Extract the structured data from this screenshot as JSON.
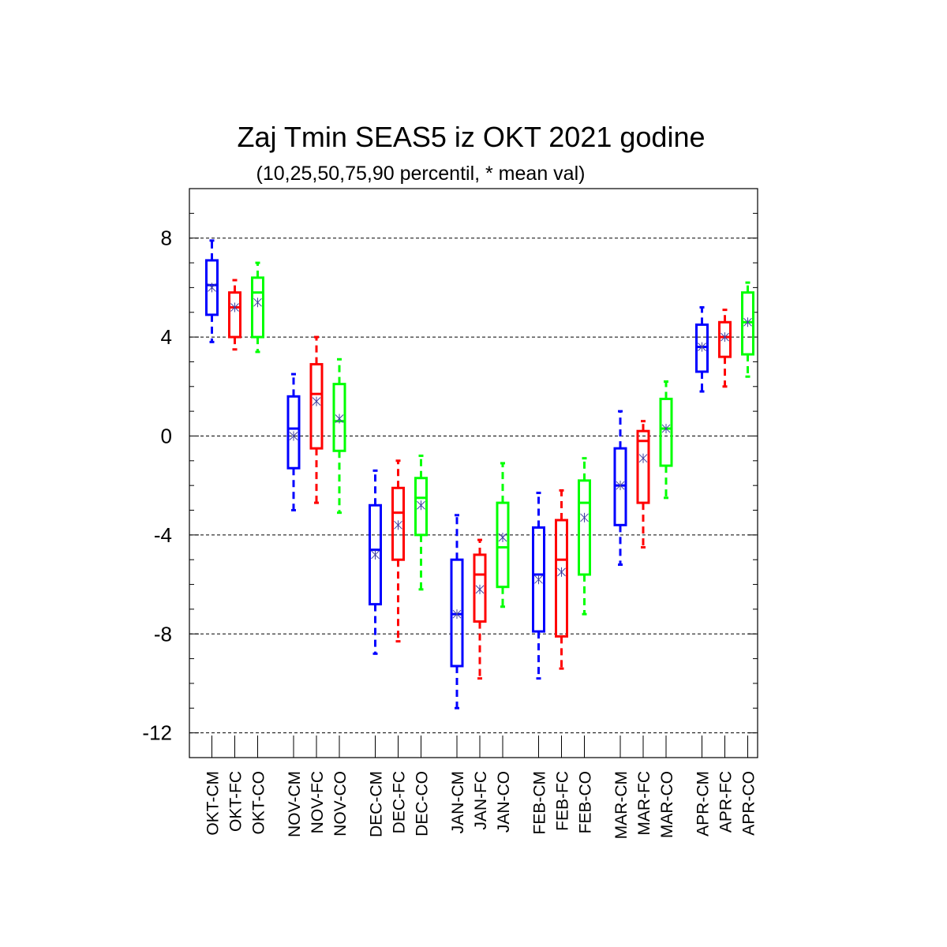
{
  "chart_data": {
    "type": "boxplot",
    "title": "Zaj Tmin SEAS5 iz OKT 2021 godine",
    "subtitle": "(10,25,50,75,90 percentil, * mean val)",
    "ylim": [
      -13,
      10
    ],
    "yticks": [
      8,
      4,
      0,
      -4,
      -8,
      -12
    ],
    "ytick_labels": [
      "8",
      "4",
      "0",
      "-4",
      "-8",
      "-12"
    ],
    "grid": "dashed horizontal at major ticks",
    "colors": {
      "CM": "#0000ff",
      "FC": "#ff0000",
      "CO": "#00ff00",
      "mean_marker": "#4040a0"
    },
    "groups": [
      {
        "month": "OKT",
        "boxes": [
          {
            "label": "OKT-CM",
            "type": "CM",
            "p10": 3.8,
            "p25": 4.9,
            "p50": 6.1,
            "p75": 7.1,
            "p90": 7.9,
            "mean": 6.0
          },
          {
            "label": "OKT-FC",
            "type": "FC",
            "p10": 3.5,
            "p25": 4.0,
            "p50": 5.2,
            "p75": 5.8,
            "p90": 6.3,
            "mean": 5.2
          },
          {
            "label": "OKT-CO",
            "type": "CO",
            "p10": 3.4,
            "p25": 4.0,
            "p50": 5.8,
            "p75": 6.4,
            "p90": 7.0,
            "mean": 5.4
          }
        ]
      },
      {
        "month": "NOV",
        "boxes": [
          {
            "label": "NOV-CM",
            "type": "CM",
            "p10": -3.0,
            "p25": -1.3,
            "p50": 0.3,
            "p75": 1.6,
            "p90": 2.5,
            "mean": 0.0
          },
          {
            "label": "NOV-FC",
            "type": "FC",
            "p10": -2.7,
            "p25": -0.5,
            "p50": 1.7,
            "p75": 2.9,
            "p90": 4.0,
            "mean": 1.4
          },
          {
            "label": "NOV-CO",
            "type": "CO",
            "p10": -3.1,
            "p25": -0.6,
            "p50": 0.6,
            "p75": 2.1,
            "p90": 3.1,
            "mean": 0.7
          }
        ]
      },
      {
        "month": "DEC",
        "boxes": [
          {
            "label": "DEC-CM",
            "type": "CM",
            "p10": -8.8,
            "p25": -6.8,
            "p50": -4.6,
            "p75": -2.8,
            "p90": -1.4,
            "mean": -4.8
          },
          {
            "label": "DEC-FC",
            "type": "FC",
            "p10": -8.3,
            "p25": -5.0,
            "p50": -3.1,
            "p75": -2.1,
            "p90": -1.0,
            "mean": -3.6
          },
          {
            "label": "DEC-CO",
            "type": "CO",
            "p10": -6.2,
            "p25": -4.0,
            "p50": -2.5,
            "p75": -1.7,
            "p90": -0.8,
            "mean": -2.8
          }
        ]
      },
      {
        "month": "JAN",
        "boxes": [
          {
            "label": "JAN-CM",
            "type": "CM",
            "p10": -11.0,
            "p25": -9.3,
            "p50": -7.2,
            "p75": -5.0,
            "p90": -3.2,
            "mean": -7.2
          },
          {
            "label": "JAN-FC",
            "type": "FC",
            "p10": -9.8,
            "p25": -7.5,
            "p50": -5.6,
            "p75": -4.8,
            "p90": -4.2,
            "mean": -6.2
          },
          {
            "label": "JAN-CO",
            "type": "CO",
            "p10": -6.9,
            "p25": -6.1,
            "p50": -4.5,
            "p75": -2.7,
            "p90": -1.1,
            "mean": -4.1
          }
        ]
      },
      {
        "month": "FEB",
        "boxes": [
          {
            "label": "FEB-CM",
            "type": "CM",
            "p10": -9.8,
            "p25": -7.9,
            "p50": -5.6,
            "p75": -3.7,
            "p90": -2.3,
            "mean": -5.8
          },
          {
            "label": "FEB-FC",
            "type": "FC",
            "p10": -9.4,
            "p25": -8.1,
            "p50": -5.0,
            "p75": -3.4,
            "p90": -2.2,
            "mean": -5.5
          },
          {
            "label": "FEB-CO",
            "type": "CO",
            "p10": -7.2,
            "p25": -5.6,
            "p50": -2.7,
            "p75": -1.8,
            "p90": -0.9,
            "mean": -3.3
          }
        ]
      },
      {
        "month": "MAR",
        "boxes": [
          {
            "label": "MAR-CM",
            "type": "CM",
            "p10": -5.2,
            "p25": -3.6,
            "p50": -2.0,
            "p75": -0.5,
            "p90": 1.0,
            "mean": -2.0
          },
          {
            "label": "MAR-FC",
            "type": "FC",
            "p10": -4.5,
            "p25": -2.7,
            "p50": -0.2,
            "p75": 0.2,
            "p90": 0.6,
            "mean": -0.9
          },
          {
            "label": "MAR-CO",
            "type": "CO",
            "p10": -2.5,
            "p25": -1.2,
            "p50": 0.3,
            "p75": 1.5,
            "p90": 2.2,
            "mean": 0.3
          }
        ]
      },
      {
        "month": "APR",
        "boxes": [
          {
            "label": "APR-CM",
            "type": "CM",
            "p10": 1.8,
            "p25": 2.6,
            "p50": 3.6,
            "p75": 4.5,
            "p90": 5.2,
            "mean": 3.6
          },
          {
            "label": "APR-FC",
            "type": "FC",
            "p10": 2.0,
            "p25": 3.2,
            "p50": 4.0,
            "p75": 4.6,
            "p90": 5.1,
            "mean": 4.0
          },
          {
            "label": "APR-CO",
            "type": "CO",
            "p10": 2.4,
            "p25": 3.3,
            "p50": 4.6,
            "p75": 5.8,
            "p90": 6.2,
            "mean": 4.6
          }
        ]
      }
    ]
  }
}
